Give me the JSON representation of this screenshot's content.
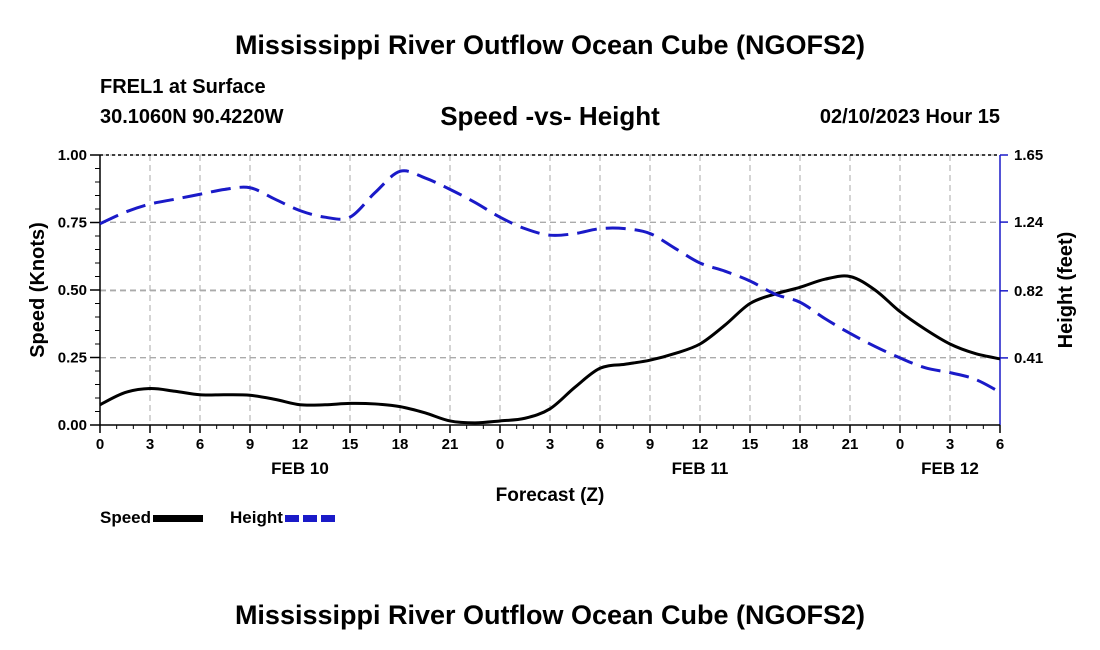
{
  "page": {
    "title": "Mississippi River Outflow Ocean Cube (NGOFS2)",
    "title_repeat": "Mississippi River Outflow Ocean Cube (NGOFS2)",
    "station": "FREL1 at Surface",
    "coordinates": "30.1060N  90.4220W",
    "subtitle": "Speed -vs- Height",
    "datetime": "02/10/2023 Hour 15"
  },
  "legend": {
    "speed_label": "Speed",
    "height_label": "Height"
  },
  "colors": {
    "speed": "#000000",
    "height": "#1a1ac8",
    "grid": "#aaaaaa"
  },
  "chart_data": {
    "type": "line",
    "xlabel": "Forecast (Z)",
    "ylabel": "Speed (Knots)",
    "y2label": "Height (feet)",
    "xlim": [
      0,
      54
    ],
    "ylim": [
      0,
      1
    ],
    "y2lim": [
      0,
      1.65
    ],
    "x_tick_labels": [
      "0",
      "3",
      "6",
      "9",
      "12",
      "15",
      "18",
      "21",
      "0",
      "3",
      "6",
      "9",
      "12",
      "15",
      "18",
      "21",
      "0",
      "3",
      "6"
    ],
    "y_tick_labels": [
      "0.00",
      "0.25",
      "0.50",
      "0.75",
      "1.00"
    ],
    "y2_tick_labels": [
      "0.41",
      "0.82",
      "1.24",
      "1.65"
    ],
    "date_labels": [
      {
        "label": "FEB 10",
        "x": 12
      },
      {
        "label": "FEB 11",
        "x": 36
      },
      {
        "label": "FEB 12",
        "x": 51
      }
    ],
    "series": [
      {
        "name": "Speed",
        "axis": "left",
        "x": [
          0,
          1.5,
          3,
          4.5,
          6,
          7.5,
          9,
          10.5,
          12,
          13.5,
          15,
          16.5,
          18,
          19.5,
          21,
          22.5,
          24,
          25.5,
          27,
          28.5,
          30,
          31.5,
          33,
          34.5,
          36,
          37.5,
          39,
          40.5,
          42,
          43.5,
          45,
          46.5,
          48,
          49.5,
          51,
          52.5,
          54
        ],
        "values": [
          0.075,
          0.12,
          0.135,
          0.125,
          0.112,
          0.112,
          0.11,
          0.095,
          0.075,
          0.075,
          0.08,
          0.078,
          0.068,
          0.045,
          0.015,
          0.008,
          0.015,
          0.025,
          0.06,
          0.14,
          0.21,
          0.225,
          0.24,
          0.265,
          0.3,
          0.37,
          0.45,
          0.485,
          0.51,
          0.54,
          0.55,
          0.5,
          0.42,
          0.355,
          0.3,
          0.265,
          0.245
        ]
      },
      {
        "name": "Height",
        "axis": "right",
        "x": [
          0,
          1.5,
          3,
          4.5,
          6,
          7.5,
          9,
          10.5,
          12,
          13.5,
          15,
          16.5,
          18,
          19.5,
          21,
          22.5,
          24,
          25.5,
          27,
          28.5,
          30,
          31.5,
          33,
          34.5,
          36,
          37.5,
          39,
          40.5,
          42,
          43.5,
          45,
          46.5,
          48,
          49.5,
          51,
          52.5,
          54
        ],
        "values": [
          1.23,
          1.3,
          1.35,
          1.38,
          1.41,
          1.44,
          1.45,
          1.38,
          1.31,
          1.27,
          1.27,
          1.42,
          1.55,
          1.51,
          1.44,
          1.36,
          1.27,
          1.2,
          1.16,
          1.17,
          1.2,
          1.2,
          1.17,
          1.08,
          0.99,
          0.94,
          0.88,
          0.8,
          0.75,
          0.65,
          0.56,
          0.48,
          0.41,
          0.35,
          0.32,
          0.28,
          0.2
        ]
      }
    ]
  }
}
